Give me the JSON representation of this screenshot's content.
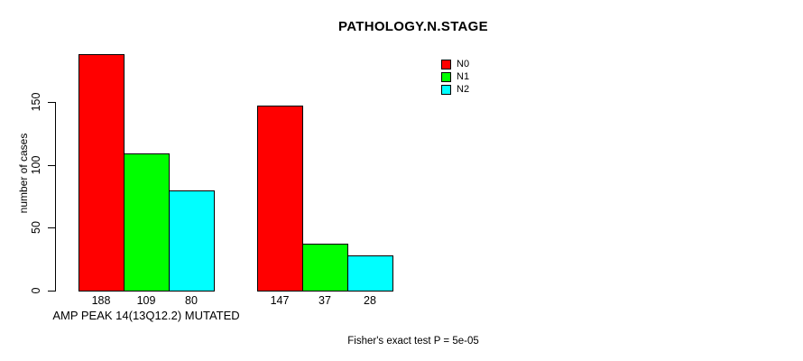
{
  "title": "PATHOLOGY.N.STAGE",
  "chart_data": {
    "type": "bar",
    "title": "PATHOLOGY.N.STAGE",
    "ylabel": "number of cases",
    "xlabel": "AMP PEAK 14(13Q12.2) MUTATED",
    "yticks": [
      0,
      50,
      100,
      150
    ],
    "ylim": [
      0,
      190
    ],
    "grid": false,
    "legend_position": "top-right",
    "legend": [
      {
        "label": "N0",
        "color": "#FF0000"
      },
      {
        "label": "N1",
        "color": "#00FF00"
      },
      {
        "label": "N2",
        "color": "#00FFFF"
      }
    ],
    "categories": [
      "AMP PEAK 14(13Q12.2) MUTATED",
      ""
    ],
    "series": [
      {
        "name": "N0",
        "color": "#FF0000",
        "values": [
          188,
          147
        ]
      },
      {
        "name": "N1",
        "color": "#00FF00",
        "values": [
          109,
          37
        ]
      },
      {
        "name": "N2",
        "color": "#00FFFF",
        "values": [
          80,
          28
        ]
      }
    ],
    "annotation": "Fisher's exact test P = 5e-05",
    "colors": {
      "axis": "#000000",
      "bar_border": "#000000",
      "background": "#FFFFFF"
    }
  }
}
